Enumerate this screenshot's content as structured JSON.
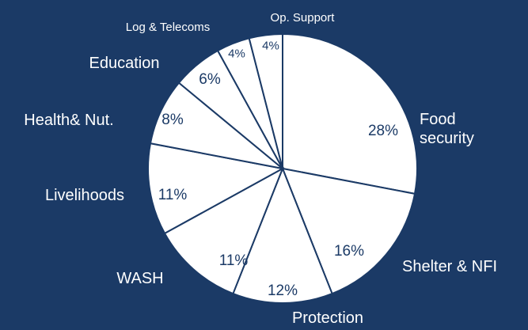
{
  "chart_data": {
    "type": "pie",
    "categories": [
      "Food security",
      "Shelter & NFI",
      "Protection",
      "WASH",
      "Livelihoods",
      "Health& Nut.",
      "Education",
      "Log & Telecoms",
      "Op. Support"
    ],
    "values": [
      28,
      16,
      12,
      11,
      11,
      8,
      6,
      4,
      4
    ],
    "value_labels": [
      "28%",
      "16%",
      "12%",
      "11%",
      "11%",
      "8%",
      "6%",
      "4%",
      "4%"
    ],
    "color": "#ffffff",
    "edge_color": "#1b3a66"
  }
}
